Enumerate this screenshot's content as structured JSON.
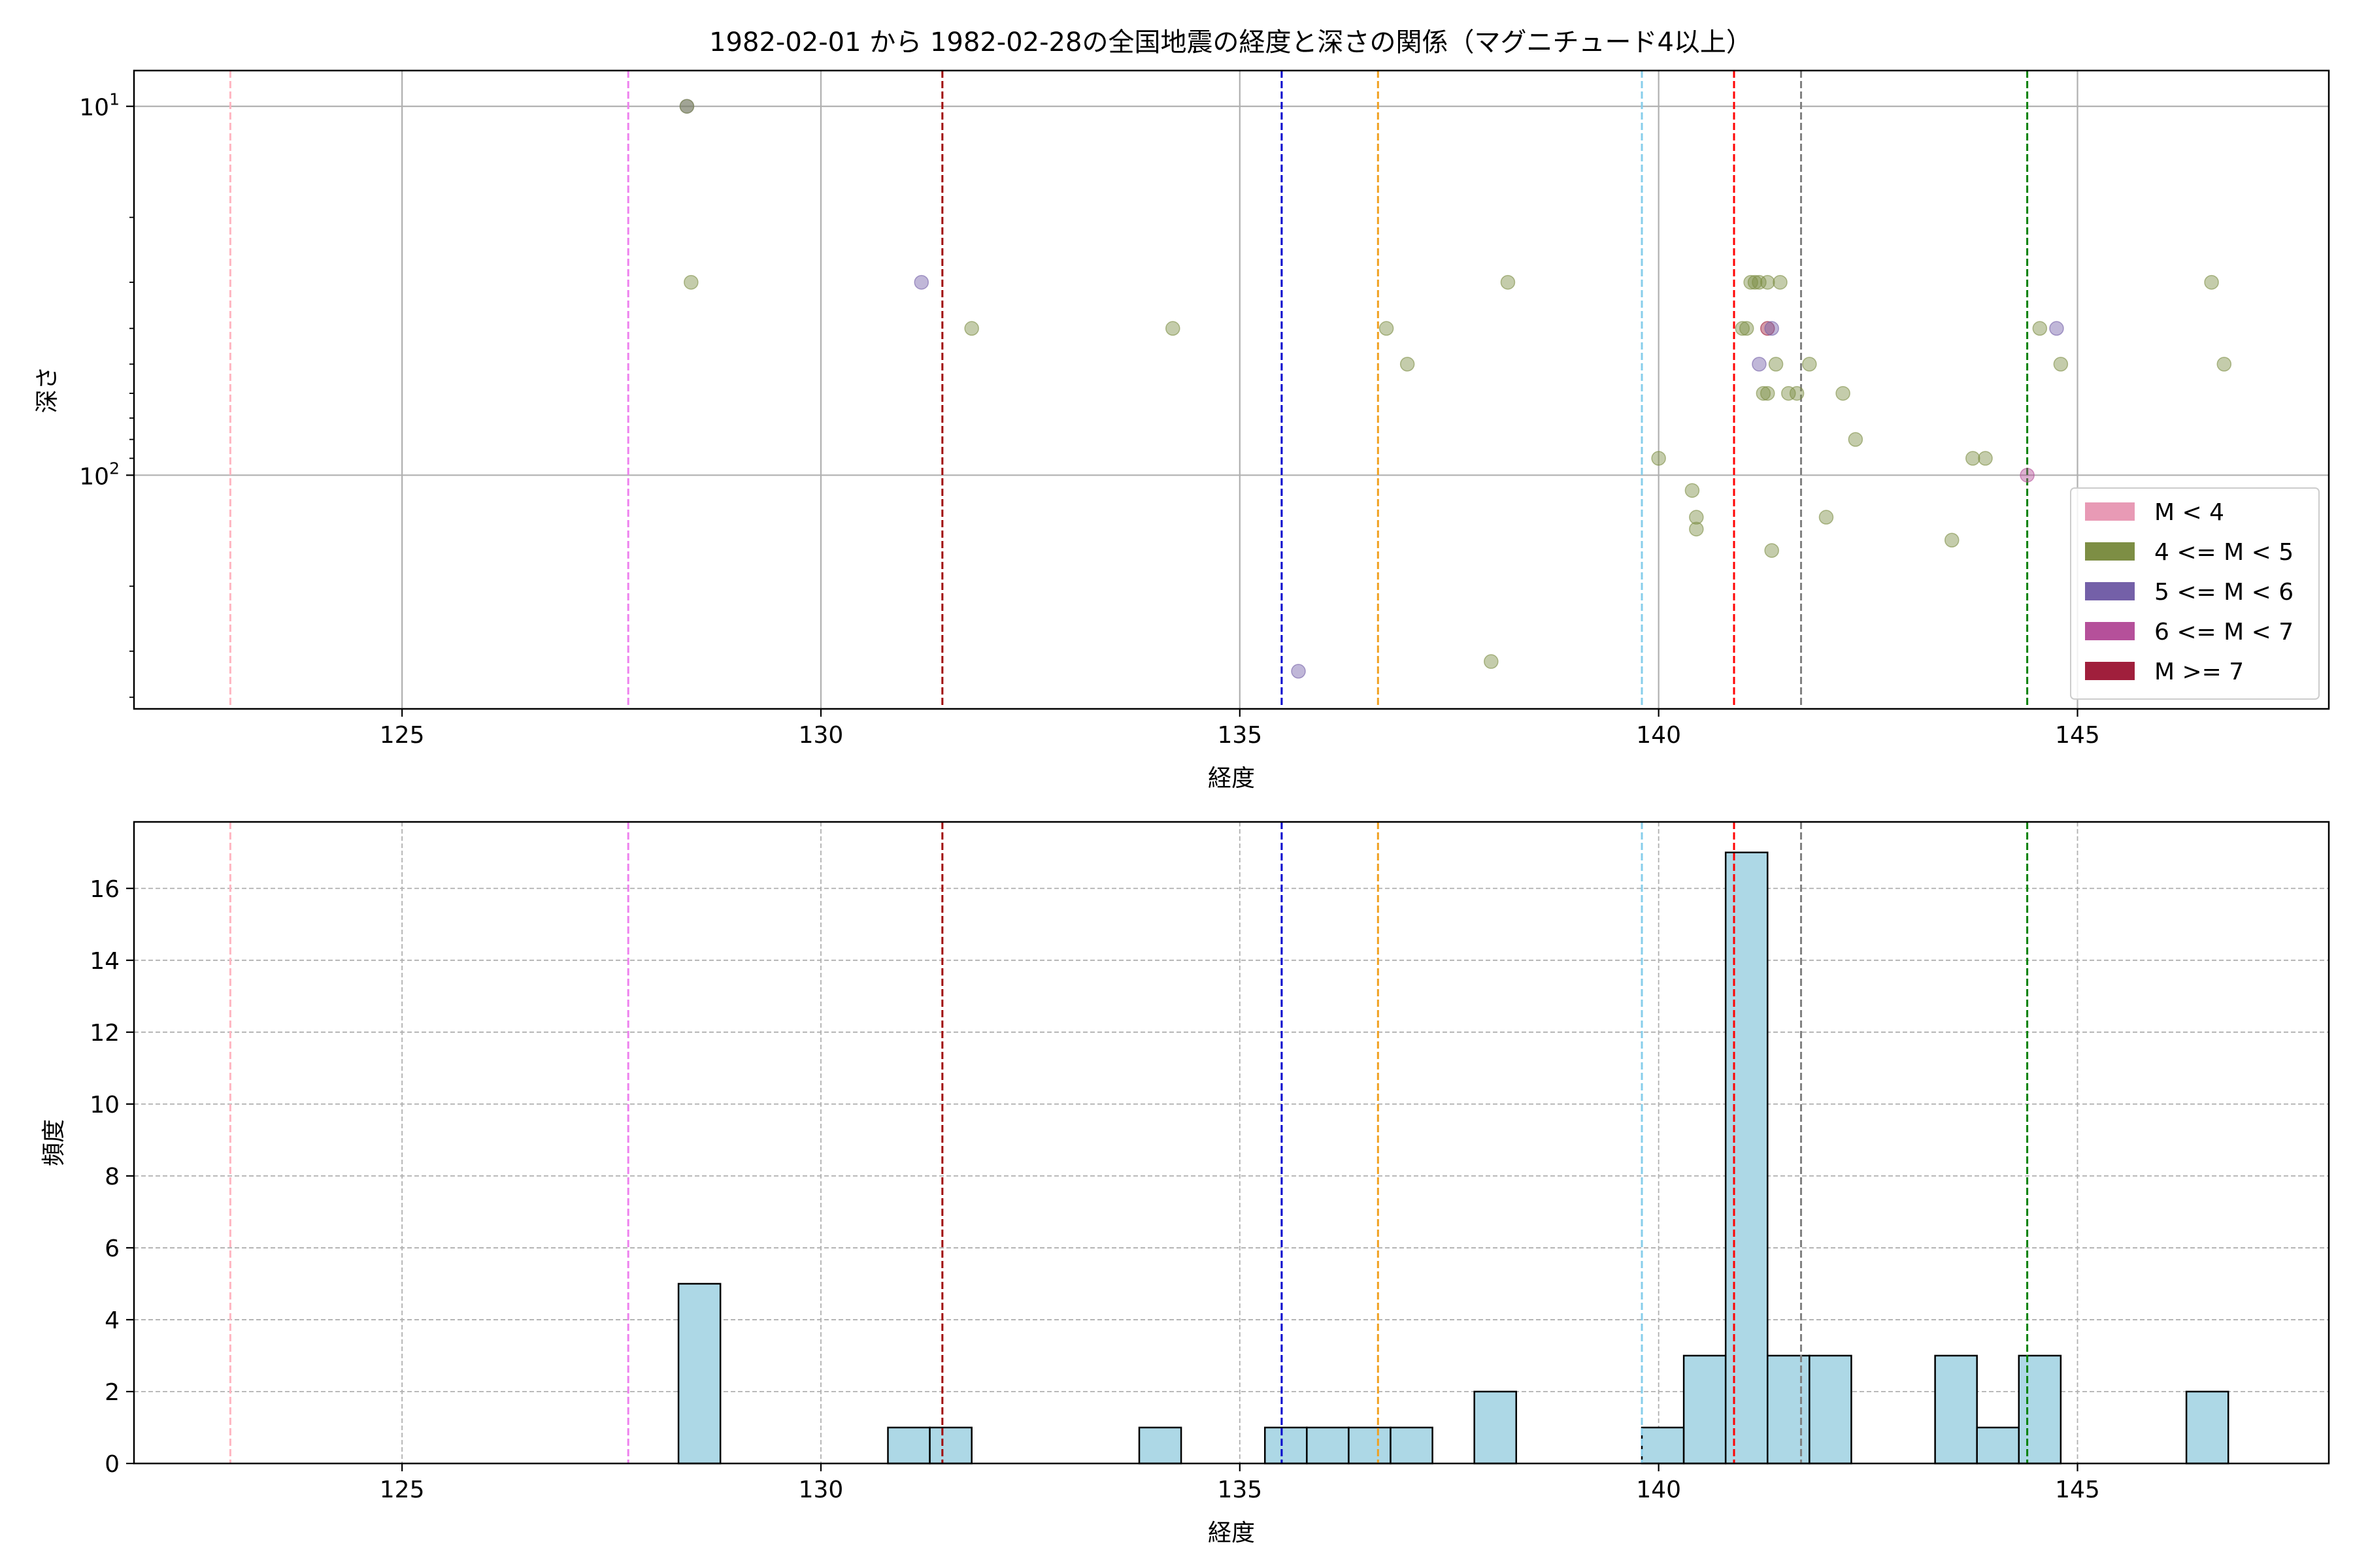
{
  "figure": {
    "title": "1982-02-01 から 1982-02-28の全国地震の経度と深さの関係（マグニチュード4以上）"
  },
  "chart_data": [
    {
      "type": "scatter",
      "xlabel": "経度",
      "ylabel": "深さ",
      "xlim": [
        121.8,
        148.0
      ],
      "ylim": [
        430,
        8
      ],
      "yscale": "log-inverted",
      "x_ticks": [
        125,
        130,
        135,
        140,
        145
      ],
      "y_ticks": [
        {
          "value": 10,
          "base": "10",
          "exp": "1"
        },
        {
          "value": 100,
          "base": "10",
          "exp": "2"
        }
      ],
      "grid": true,
      "legend_position": "lower-right",
      "legend": [
        {
          "label": "M < 4",
          "color": "#e89ab5"
        },
        {
          "label": "4 <= M < 5",
          "color": "#7d8e44"
        },
        {
          "label": "5 <= M < 6",
          "color": "#7460a8"
        },
        {
          "label": "6 <= M < 7",
          "color": "#b5509a"
        },
        {
          "label": "M >= 7",
          "color": "#a01f3c"
        }
      ],
      "vlines": [
        {
          "x": 122.95,
          "color": "#ffb6c1"
        },
        {
          "x": 127.7,
          "color": "#ee82ee"
        },
        {
          "x": 131.45,
          "color": "#a00000"
        },
        {
          "x": 135.5,
          "color": "#0000cd"
        },
        {
          "x": 136.65,
          "color": "#f0a020"
        },
        {
          "x": 139.8,
          "color": "#87ceeb"
        },
        {
          "x": 140.9,
          "color": "#ff0000"
        },
        {
          "x": 141.7,
          "color": "#808080"
        },
        {
          "x": 144.4,
          "color": "#008000"
        }
      ],
      "points": [
        {
          "x": 128.4,
          "y": 10,
          "color": "#7460a8"
        },
        {
          "x": 128.4,
          "y": 10,
          "color": "#7d8e44"
        },
        {
          "x": 128.45,
          "y": 30,
          "color": "#7d8e44"
        },
        {
          "x": 131.2,
          "y": 30,
          "color": "#7460a8"
        },
        {
          "x": 131.8,
          "y": 40,
          "color": "#7d8e44"
        },
        {
          "x": 134.2,
          "y": 40,
          "color": "#7d8e44"
        },
        {
          "x": 135.7,
          "y": 340,
          "color": "#7460a8"
        },
        {
          "x": 136.75,
          "y": 40,
          "color": "#7d8e44"
        },
        {
          "x": 137.0,
          "y": 50,
          "color": "#7d8e44"
        },
        {
          "x": 138.0,
          "y": 320,
          "color": "#7d8e44"
        },
        {
          "x": 138.2,
          "y": 30,
          "color": "#7d8e44"
        },
        {
          "x": 140.0,
          "y": 90,
          "color": "#7d8e44"
        },
        {
          "x": 140.4,
          "y": 110,
          "color": "#7d8e44"
        },
        {
          "x": 140.45,
          "y": 130,
          "color": "#7d8e44"
        },
        {
          "x": 140.45,
          "y": 140,
          "color": "#7d8e44"
        },
        {
          "x": 141.0,
          "y": 40,
          "color": "#7d8e44"
        },
        {
          "x": 141.05,
          "y": 40,
          "color": "#7d8e44"
        },
        {
          "x": 141.1,
          "y": 30,
          "color": "#7d8e44"
        },
        {
          "x": 141.15,
          "y": 30,
          "color": "#7d8e44"
        },
        {
          "x": 141.2,
          "y": 30,
          "color": "#7d8e44"
        },
        {
          "x": 141.2,
          "y": 50,
          "color": "#7460a8"
        },
        {
          "x": 141.25,
          "y": 60,
          "color": "#7d8e44"
        },
        {
          "x": 141.3,
          "y": 60,
          "color": "#7d8e44"
        },
        {
          "x": 141.3,
          "y": 30,
          "color": "#7d8e44"
        },
        {
          "x": 141.3,
          "y": 40,
          "color": "#a01f3c"
        },
        {
          "x": 141.35,
          "y": 40,
          "color": "#7460a8"
        },
        {
          "x": 141.35,
          "y": 160,
          "color": "#7d8e44"
        },
        {
          "x": 141.4,
          "y": 50,
          "color": "#7d8e44"
        },
        {
          "x": 141.45,
          "y": 30,
          "color": "#7d8e44"
        },
        {
          "x": 141.55,
          "y": 60,
          "color": "#7d8e44"
        },
        {
          "x": 141.65,
          "y": 60,
          "color": "#7d8e44"
        },
        {
          "x": 141.8,
          "y": 50,
          "color": "#7d8e44"
        },
        {
          "x": 142.0,
          "y": 130,
          "color": "#7d8e44"
        },
        {
          "x": 142.2,
          "y": 60,
          "color": "#7d8e44"
        },
        {
          "x": 142.35,
          "y": 80,
          "color": "#7d8e44"
        },
        {
          "x": 143.5,
          "y": 150,
          "color": "#7d8e44"
        },
        {
          "x": 143.75,
          "y": 90,
          "color": "#7d8e44"
        },
        {
          "x": 143.9,
          "y": 90,
          "color": "#7d8e44"
        },
        {
          "x": 144.4,
          "y": 100,
          "color": "#b5509a"
        },
        {
          "x": 144.55,
          "y": 40,
          "color": "#7d8e44"
        },
        {
          "x": 144.75,
          "y": 40,
          "color": "#7460a8"
        },
        {
          "x": 144.8,
          "y": 50,
          "color": "#7d8e44"
        },
        {
          "x": 146.6,
          "y": 30,
          "color": "#7d8e44"
        },
        {
          "x": 146.75,
          "y": 50,
          "color": "#7d8e44"
        }
      ]
    },
    {
      "type": "bar",
      "xlabel": "経度",
      "ylabel": "頻度",
      "xlim": [
        121.8,
        148.0
      ],
      "ylim": [
        0,
        17.85
      ],
      "x_ticks": [
        125,
        130,
        135,
        140,
        145
      ],
      "y_ticks": [
        0,
        2,
        4,
        6,
        8,
        10,
        12,
        14,
        16
      ],
      "grid": true,
      "bar_color": "#add8e6",
      "bin_width": 0.5,
      "vlines": [
        {
          "x": 122.95,
          "color": "#ffb6c1"
        },
        {
          "x": 127.7,
          "color": "#ee82ee"
        },
        {
          "x": 131.45,
          "color": "#a00000"
        },
        {
          "x": 135.5,
          "color": "#0000cd"
        },
        {
          "x": 136.65,
          "color": "#f0a020"
        },
        {
          "x": 139.8,
          "color": "#87ceeb"
        },
        {
          "x": 140.9,
          "color": "#ff0000"
        },
        {
          "x": 141.7,
          "color": "#808080"
        },
        {
          "x": 144.4,
          "color": "#008000"
        }
      ],
      "bins": [
        {
          "x0": 128.3,
          "x1": 128.8,
          "count": 5
        },
        {
          "x0": 130.8,
          "x1": 131.3,
          "count": 1
        },
        {
          "x0": 131.3,
          "x1": 131.8,
          "count": 1
        },
        {
          "x0": 133.8,
          "x1": 134.3,
          "count": 1
        },
        {
          "x0": 135.3,
          "x1": 135.8,
          "count": 1
        },
        {
          "x0": 135.8,
          "x1": 136.3,
          "count": 1
        },
        {
          "x0": 136.3,
          "x1": 136.8,
          "count": 1
        },
        {
          "x0": 136.8,
          "x1": 137.3,
          "count": 1
        },
        {
          "x0": 137.8,
          "x1": 138.3,
          "count": 2
        },
        {
          "x0": 139.8,
          "x1": 140.3,
          "count": 1
        },
        {
          "x0": 140.3,
          "x1": 140.8,
          "count": 3
        },
        {
          "x0": 140.8,
          "x1": 141.3,
          "count": 17
        },
        {
          "x0": 141.3,
          "x1": 141.8,
          "count": 3
        },
        {
          "x0": 141.8,
          "x1": 142.3,
          "count": 3
        },
        {
          "x0": 143.3,
          "x1": 143.8,
          "count": 3
        },
        {
          "x0": 143.8,
          "x1": 144.3,
          "count": 1
        },
        {
          "x0": 144.3,
          "x1": 144.8,
          "count": 3
        },
        {
          "x0": 146.3,
          "x1": 146.8,
          "count": 2
        }
      ]
    }
  ]
}
